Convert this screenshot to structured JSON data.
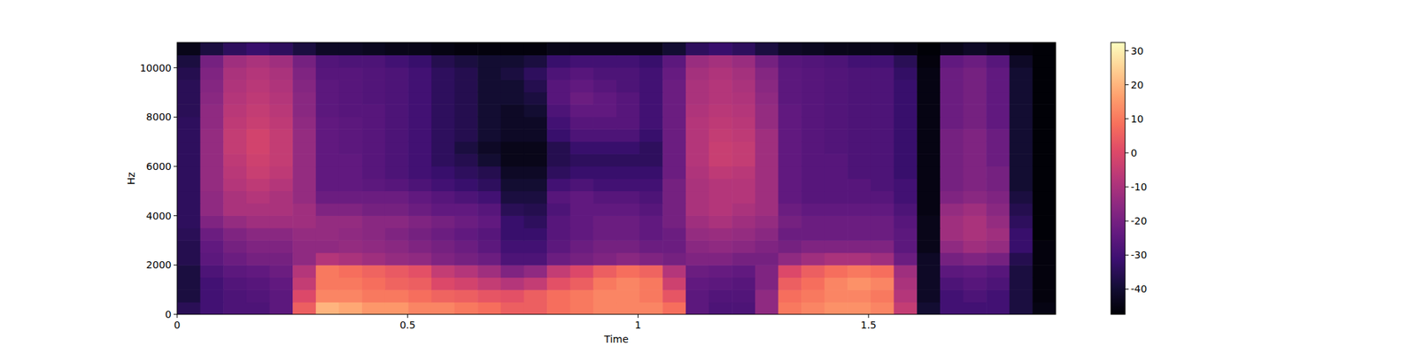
{
  "chart_data": {
    "type": "heatmap",
    "xlabel": "Time",
    "ylabel": "Hz",
    "color": "magma",
    "xlim": [
      0,
      1.906
    ],
    "ylim": [
      0,
      11025
    ],
    "xticks": [
      0,
      0.5,
      1,
      1.5
    ],
    "yticks": [
      0,
      2000,
      4000,
      6000,
      8000,
      10000
    ],
    "colorbar": {
      "range": [
        -47.4,
        32.4
      ],
      "ticks": [
        -40,
        -30,
        -20,
        -10,
        0,
        10,
        20,
        30
      ]
    },
    "cells": [
      [
        -35,
        -30,
        -28,
        -28,
        -25,
        5,
        20,
        18,
        15,
        15,
        12,
        12,
        10,
        8,
        5,
        5,
        8,
        10,
        12,
        12,
        12,
        8,
        -25,
        -28,
        -28,
        -15,
        10,
        12,
        14,
        14,
        12,
        -5,
        -40,
        -30,
        -30,
        -30,
        -38,
        -45
      ],
      [
        -38,
        -30,
        -28,
        -27,
        -25,
        0,
        12,
        12,
        10,
        10,
        8,
        6,
        5,
        3,
        2,
        5,
        8,
        10,
        12,
        12,
        10,
        3,
        -25,
        -27,
        -27,
        -15,
        8,
        10,
        12,
        12,
        10,
        -8,
        -42,
        -30,
        -28,
        -30,
        -38,
        -46
      ],
      [
        -38,
        -30,
        -27,
        -26,
        -24,
        -5,
        10,
        10,
        8,
        6,
        5,
        0,
        -2,
        -5,
        -8,
        -5,
        2,
        5,
        10,
        12,
        10,
        -3,
        -24,
        -25,
        -26,
        -18,
        5,
        8,
        12,
        14,
        12,
        -10,
        -42,
        -28,
        -26,
        -28,
        -38,
        -46
      ],
      [
        -38,
        -28,
        -25,
        -24,
        -22,
        -8,
        10,
        8,
        6,
        4,
        2,
        -5,
        -8,
        -12,
        -18,
        -15,
        -5,
        0,
        5,
        8,
        6,
        -8,
        -22,
        -23,
        -24,
        -18,
        0,
        5,
        8,
        10,
        8,
        -12,
        -42,
        -25,
        -24,
        -26,
        -38,
        -46
      ],
      [
        -36,
        -25,
        -22,
        -20,
        -20,
        -15,
        -8,
        -10,
        -12,
        -14,
        -15,
        -18,
        -20,
        -22,
        -28,
        -28,
        -22,
        -20,
        -18,
        -16,
        -18,
        -20,
        -18,
        -18,
        -20,
        -20,
        -15,
        -12,
        -10,
        -10,
        -12,
        -22,
        -42,
        -20,
        -18,
        -20,
        -36,
        -46
      ],
      [
        -36,
        -24,
        -20,
        -18,
        -18,
        -15,
        -15,
        -14,
        -15,
        -16,
        -18,
        -20,
        -22,
        -25,
        -30,
        -30,
        -25,
        -22,
        -20,
        -20,
        -22,
        -22,
        -16,
        -15,
        -16,
        -18,
        -20,
        -18,
        -18,
        -18,
        -18,
        -25,
        -44,
        -15,
        -12,
        -14,
        -32,
        -46
      ],
      [
        -35,
        -22,
        -18,
        -16,
        -16,
        -14,
        -14,
        -15,
        -16,
        -18,
        -20,
        -22,
        -24,
        -26,
        -32,
        -32,
        -26,
        -24,
        -22,
        -22,
        -24,
        -22,
        -14,
        -13,
        -14,
        -16,
        -22,
        -22,
        -22,
        -22,
        -22,
        -25,
        -44,
        -12,
        -10,
        -12,
        -32,
        -47
      ],
      [
        -34,
        -18,
        -14,
        -12,
        -12,
        -12,
        -14,
        -14,
        -16,
        -16,
        -18,
        -20,
        -22,
        -24,
        -32,
        -34,
        -26,
        -24,
        -22,
        -22,
        -24,
        -20,
        -12,
        -10,
        -12,
        -14,
        -20,
        -22,
        -22,
        -22,
        -22,
        -26,
        -44,
        -12,
        -10,
        -14,
        -34,
        -47
      ],
      [
        -34,
        -15,
        -10,
        -10,
        -10,
        -12,
        -18,
        -18,
        -20,
        -20,
        -22,
        -24,
        -24,
        -26,
        -35,
        -36,
        -28,
        -24,
        -24,
        -24,
        -26,
        -20,
        -10,
        -8,
        -10,
        -12,
        -22,
        -24,
        -24,
        -24,
        -24,
        -28,
        -45,
        -14,
        -12,
        -16,
        -36,
        -47
      ],
      [
        -34,
        -15,
        -10,
        -8,
        -10,
        -14,
        -22,
        -22,
        -22,
        -22,
        -24,
        -26,
        -28,
        -30,
        -38,
        -38,
        -26,
        -24,
        -26,
        -26,
        -28,
        -20,
        -10,
        -8,
        -8,
        -12,
        -24,
        -26,
        -26,
        -26,
        -26,
        -30,
        -45,
        -18,
        -16,
        -18,
        -38,
        -47
      ],
      [
        -34,
        -14,
        -8,
        -6,
        -8,
        -14,
        -24,
        -24,
        -25,
        -26,
        -28,
        -30,
        -32,
        -34,
        -40,
        -40,
        -30,
        -28,
        -30,
        -30,
        -30,
        -20,
        -10,
        -8,
        -8,
        -12,
        -24,
        -26,
        -26,
        -26,
        -28,
        -30,
        -45,
        -20,
        -18,
        -20,
        -40,
        -47
      ],
      [
        -34,
        -14,
        -7,
        -4,
        -6,
        -14,
        -24,
        -24,
        -26,
        -28,
        -30,
        -32,
        -34,
        -36,
        -42,
        -42,
        -34,
        -32,
        -32,
        -32,
        -32,
        -22,
        -9,
        -6,
        -7,
        -12,
        -24,
        -26,
        -26,
        -28,
        -28,
        -32,
        -45,
        -20,
        -18,
        -20,
        -40,
        -47
      ],
      [
        -34,
        -14,
        -6,
        -3,
        -5,
        -14,
        -24,
        -24,
        -26,
        -28,
        -30,
        -34,
        -36,
        -40,
        -44,
        -44,
        -36,
        -34,
        -34,
        -34,
        -34,
        -22,
        -8,
        -4,
        -5,
        -12,
        -24,
        -26,
        -26,
        -28,
        -28,
        -32,
        -45,
        -20,
        -18,
        -22,
        -40,
        -47
      ],
      [
        -34,
        -14,
        -5,
        -2,
        -5,
        -14,
        -24,
        -25,
        -26,
        -28,
        -30,
        -34,
        -38,
        -42,
        -44,
        -44,
        -36,
        -32,
        -32,
        -32,
        -34,
        -22,
        -8,
        -4,
        -5,
        -12,
        -24,
        -26,
        -27,
        -28,
        -28,
        -32,
        -45,
        -20,
        -18,
        -22,
        -40,
        -47
      ],
      [
        -34,
        -14,
        -5,
        -2,
        -5,
        -14,
        -24,
        -25,
        -26,
        -28,
        -30,
        -34,
        -36,
        -40,
        -42,
        -42,
        -32,
        -28,
        -28,
        -28,
        -32,
        -22,
        -8,
        -5,
        -6,
        -12,
        -24,
        -26,
        -27,
        -28,
        -28,
        -32,
        -45,
        -20,
        -18,
        -22,
        -40,
        -47
      ],
      [
        -34,
        -15,
        -6,
        -4,
        -6,
        -15,
        -24,
        -25,
        -26,
        -28,
        -30,
        -34,
        -36,
        -40,
        -42,
        -42,
        -30,
        -26,
        -26,
        -26,
        -30,
        -22,
        -8,
        -6,
        -7,
        -14,
        -24,
        -26,
        -27,
        -28,
        -28,
        -32,
        -45,
        -22,
        -20,
        -24,
        -40,
        -47
      ],
      [
        -35,
        -15,
        -7,
        -5,
        -7,
        -16,
        -25,
        -26,
        -26,
        -28,
        -30,
        -34,
        -36,
        -40,
        -42,
        -40,
        -28,
        -24,
        -24,
        -26,
        -30,
        -22,
        -9,
        -7,
        -8,
        -14,
        -24,
        -26,
        -27,
        -28,
        -28,
        -32,
        -45,
        -22,
        -20,
        -24,
        -40,
        -47
      ],
      [
        -35,
        -16,
        -8,
        -6,
        -8,
        -16,
        -25,
        -26,
        -27,
        -28,
        -30,
        -34,
        -36,
        -40,
        -40,
        -38,
        -26,
        -22,
        -24,
        -26,
        -30,
        -22,
        -10,
        -8,
        -9,
        -15,
        -25,
        -26,
        -27,
        -28,
        -28,
        -32,
        -45,
        -22,
        -20,
        -24,
        -40,
        -47
      ],
      [
        -35,
        -17,
        -9,
        -7,
        -9,
        -17,
        -25,
        -26,
        -27,
        -28,
        -30,
        -34,
        -36,
        -40,
        -40,
        -36,
        -26,
        -24,
        -26,
        -28,
        -30,
        -22,
        -10,
        -8,
        -10,
        -16,
        -25,
        -26,
        -27,
        -28,
        -28,
        -32,
        -45,
        -22,
        -20,
        -24,
        -40,
        -47
      ],
      [
        -36,
        -18,
        -10,
        -8,
        -10,
        -18,
        -26,
        -26,
        -27,
        -28,
        -30,
        -34,
        -36,
        -40,
        -38,
        -34,
        -28,
        -26,
        -28,
        -28,
        -30,
        -23,
        -11,
        -9,
        -11,
        -17,
        -25,
        -26,
        -27,
        -28,
        -28,
        -33,
        -45,
        -22,
        -20,
        -24,
        -40,
        -47
      ],
      [
        -38,
        -20,
        -12,
        -10,
        -12,
        -20,
        -27,
        -28,
        -28,
        -30,
        -32,
        -36,
        -38,
        -40,
        -40,
        -38,
        -32,
        -30,
        -30,
        -30,
        -32,
        -25,
        -13,
        -11,
        -13,
        -20,
        -26,
        -27,
        -28,
        -30,
        -30,
        -35,
        -46,
        -24,
        -22,
        -26,
        -42,
        -47
      ],
      [
        -44,
        -38,
        -34,
        -32,
        -34,
        -38,
        -42,
        -42,
        -43,
        -44,
        -44,
        -45,
        -46,
        -46,
        -46,
        -46,
        -44,
        -44,
        -44,
        -44,
        -44,
        -40,
        -34,
        -32,
        -34,
        -38,
        -42,
        -43,
        -44,
        -44,
        -44,
        -45,
        -47,
        -44,
        -42,
        -44,
        -46,
        -47
      ]
    ]
  }
}
